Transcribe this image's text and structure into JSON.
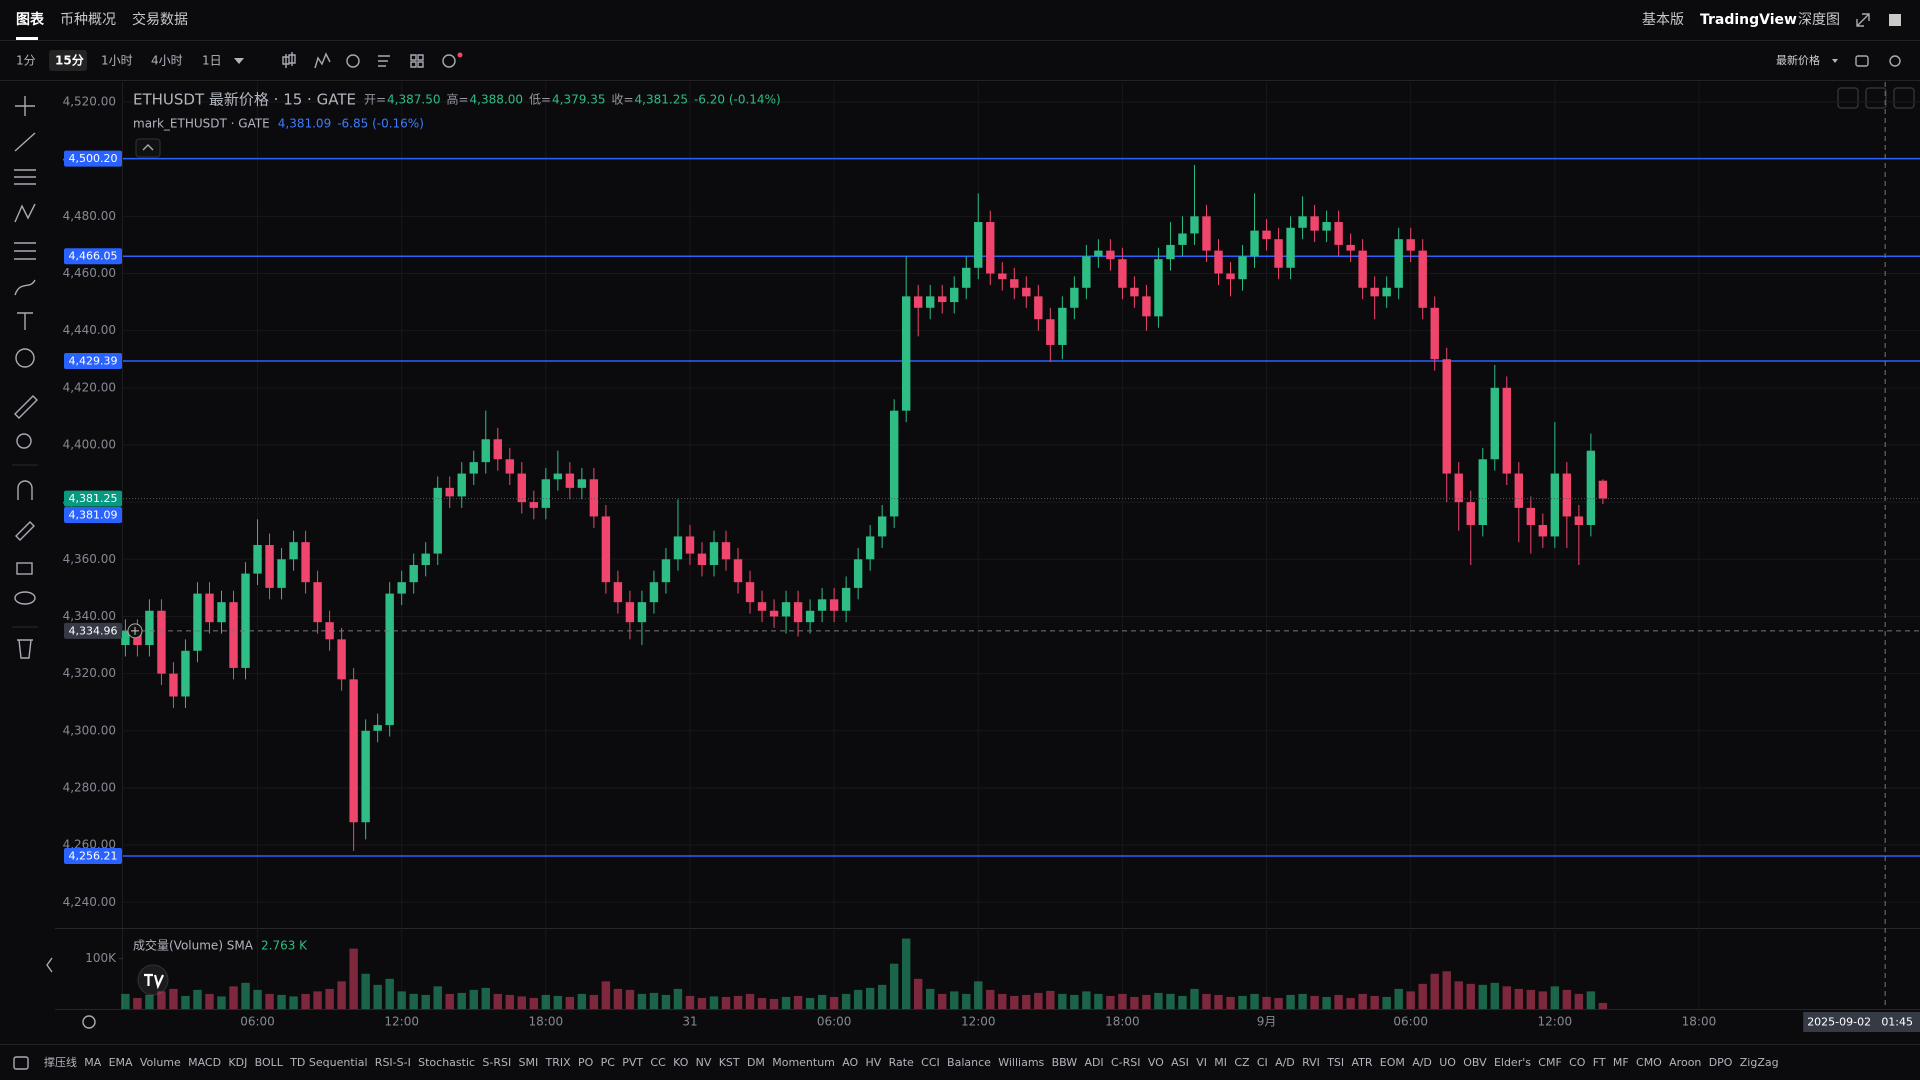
{
  "top_tabs": [
    "图表",
    "币种概况",
    "交易数据"
  ],
  "top_right": [
    "基本版",
    "TradingView",
    "深度图"
  ],
  "intervals": [
    "1分",
    "15分",
    "1小时",
    "4小时",
    "1日"
  ],
  "price_mode": "最新价格",
  "legend": {
    "title": "ETHUSDT 最新价格 · 15 · GATE",
    "fields": [
      {
        "label": "开=",
        "value": "4,387.50"
      },
      {
        "label": "高=",
        "value": "4,388.00"
      },
      {
        "label": "低=",
        "value": "4,379.35"
      },
      {
        "label": "收=",
        "value": "4,381.25"
      }
    ],
    "change": "-6.20 (-0.14%)",
    "mark_title": "mark_ETHUSDT · GATE",
    "mark_value": "4,381.09",
    "mark_change": "-6.85 (-0.16%)"
  },
  "indicators": [
    "撑压线",
    "MA",
    "EMA",
    "Volume",
    "MACD",
    "KDJ",
    "BOLL",
    "TD Sequential",
    "RSI-S-I",
    "Stochastic",
    "S-RSI",
    "SMI",
    "TRIX",
    "PO",
    "PC",
    "PVT",
    "CC",
    "KO",
    "NV",
    "KST",
    "DM",
    "Momentum",
    "AO",
    "HV",
    "Rate",
    "CCI",
    "Balance",
    "Williams",
    "BBW",
    "ADI",
    "C-RSI",
    "VO",
    "ASI",
    "VI",
    "MI",
    "CZ",
    "CI",
    "A/D",
    "RVI",
    "TSI",
    "ATR",
    "EOM",
    "A/D",
    "UO",
    "OBV",
    "Elder's",
    "CMF",
    "CO",
    "FT",
    "MF",
    "CMO",
    "Aroon",
    "DPO",
    "ZigZag"
  ],
  "chart_data": {
    "type": "candlestick",
    "x": [
      1,
      2,
      3,
      4,
      5,
      6,
      7,
      8,
      9,
      10,
      11,
      12,
      13,
      14,
      15,
      16,
      17,
      18,
      19,
      20,
      21,
      22,
      23,
      24,
      25,
      26,
      27,
      28,
      29,
      30,
      31,
      32,
      33,
      34,
      35,
      36,
      37,
      38,
      39,
      40,
      41,
      42,
      43,
      44,
      45,
      46,
      47,
      48,
      49,
      50,
      51,
      52,
      53,
      54,
      55,
      56,
      57,
      58,
      59,
      60,
      61,
      62,
      63,
      64,
      65,
      66,
      67,
      68,
      69,
      70,
      71,
      72,
      73,
      74,
      75,
      76,
      77,
      78,
      79,
      80,
      81,
      82,
      83,
      84,
      85,
      86,
      87,
      88,
      89,
      90,
      91,
      92,
      93,
      94,
      95,
      96,
      97,
      98,
      99,
      100,
      101,
      102,
      103,
      104,
      105,
      106,
      107,
      108,
      109,
      110,
      111,
      112,
      113,
      114,
      115,
      116,
      117,
      118,
      119,
      120,
      121,
      122,
      123,
      124
    ],
    "open": [
      4330,
      4335,
      4330,
      4342,
      4320,
      4312,
      4328,
      4348,
      4338,
      4345,
      4322,
      4355,
      4365,
      4350,
      4360,
      4366,
      4352,
      4338,
      4332,
      4318,
      4268,
      4300,
      4302,
      4348,
      4352,
      4358,
      4362,
      4385,
      4382,
      4390,
      4394,
      4402,
      4395,
      4390,
      4380,
      4378,
      4388,
      4390,
      4385,
      4388,
      4375,
      4352,
      4345,
      4338,
      4345,
      4352,
      4360,
      4368,
      4362,
      4358,
      4366,
      4360,
      4352,
      4345,
      4342,
      4340,
      4345,
      4338,
      4342,
      4346,
      4342,
      4350,
      4360,
      4368,
      4375,
      4412,
      4452,
      4448,
      4452,
      4450,
      4455,
      4462,
      4478,
      4460,
      4458,
      4455,
      4452,
      4444,
      4435,
      4448,
      4455,
      4466,
      4468,
      4465,
      4455,
      4452,
      4445,
      4465,
      4470,
      4474,
      4480,
      4468,
      4460,
      4458,
      4466,
      4475,
      4472,
      4462,
      4476,
      4480,
      4475,
      4478,
      4470,
      4468,
      4455,
      4452,
      4455,
      4472,
      4468,
      4448,
      4430,
      4390,
      4380,
      4372,
      4395,
      4420,
      4390,
      4378,
      4372,
      4368,
      4390,
      4375,
      4372,
      4387.5
    ],
    "high": [
      4339,
      4339,
      4346,
      4346,
      4324,
      4332,
      4352,
      4352,
      4349,
      4349,
      4359,
      4374,
      4369,
      4364,
      4370,
      4370,
      4356,
      4342,
      4336,
      4322,
      4304,
      4306,
      4352,
      4356,
      4362,
      4366,
      4389,
      4389,
      4394,
      4398,
      4412,
      4406,
      4399,
      4394,
      4384,
      4392,
      4398,
      4394,
      4392,
      4392,
      4379,
      4356,
      4349,
      4349,
      4356,
      4364,
      4381,
      4372,
      4366,
      4370,
      4370,
      4364,
      4356,
      4349,
      4346,
      4349,
      4349,
      4346,
      4350,
      4350,
      4354,
      4364,
      4372,
      4379,
      4416,
      4466,
      4456,
      4456,
      4456,
      4459,
      4466,
      4488,
      4482,
      4464,
      4462,
      4459,
      4456,
      4448,
      4452,
      4459,
      4470,
      4472,
      4472,
      4469,
      4459,
      4456,
      4469,
      4478,
      4480,
      4498,
      4484,
      4472,
      4464,
      4470,
      4488,
      4479,
      4476,
      4480,
      4487,
      4484,
      4482,
      4482,
      4474,
      4472,
      4459,
      4459,
      4476,
      4476,
      4472,
      4452,
      4434,
      4394,
      4384,
      4399,
      4428,
      4424,
      4394,
      4382,
      4376,
      4408,
      4394,
      4379,
      4404,
      4388
    ],
    "low": [
      4326,
      4326,
      4326,
      4316,
      4308,
      4308,
      4324,
      4334,
      4334,
      4318,
      4318,
      4351,
      4346,
      4346,
      4356,
      4348,
      4334,
      4328,
      4314,
      4258,
      4262,
      4296,
      4298,
      4344,
      4348,
      4354,
      4358,
      4378,
      4378,
      4386,
      4390,
      4391,
      4386,
      4376,
      4374,
      4374,
      4384,
      4381,
      4381,
      4371,
      4348,
      4341,
      4332,
      4330,
      4341,
      4348,
      4356,
      4358,
      4354,
      4354,
      4356,
      4348,
      4341,
      4338,
      4336,
      4334,
      4333,
      4334,
      4338,
      4338,
      4338,
      4346,
      4356,
      4364,
      4371,
      4408,
      4438,
      4444,
      4446,
      4446,
      4451,
      4458,
      4456,
      4454,
      4451,
      4448,
      4440,
      4429,
      4430,
      4444,
      4451,
      4462,
      4461,
      4451,
      4448,
      4440,
      4441,
      4461,
      4466,
      4470,
      4464,
      4456,
      4452,
      4454,
      4462,
      4468,
      4458,
      4458,
      4472,
      4471,
      4471,
      4466,
      4464,
      4451,
      4444,
      4448,
      4451,
      4464,
      4444,
      4426,
      4380,
      4370,
      4358,
      4368,
      4391,
      4386,
      4366,
      4362,
      4364,
      4364,
      4364,
      4358,
      4368,
      4379.35
    ],
    "close": [
      4335,
      4330,
      4342,
      4320,
      4312,
      4328,
      4348,
      4338,
      4345,
      4322,
      4355,
      4365,
      4350,
      4360,
      4366,
      4352,
      4338,
      4332,
      4318,
      4268,
      4300,
      4302,
      4348,
      4352,
      4358,
      4362,
      4385,
      4382,
      4390,
      4394,
      4402,
      4395,
      4390,
      4380,
      4378,
      4388,
      4390,
      4385,
      4388,
      4375,
      4352,
      4345,
      4338,
      4345,
      4352,
      4360,
      4368,
      4362,
      4358,
      4366,
      4360,
      4352,
      4345,
      4342,
      4340,
      4345,
      4338,
      4342,
      4346,
      4342,
      4350,
      4360,
      4368,
      4375,
      4412,
      4452,
      4448,
      4452,
      4450,
      4455,
      4462,
      4478,
      4460,
      4458,
      4455,
      4452,
      4444,
      4435,
      4448,
      4455,
      4466,
      4468,
      4465,
      4455,
      4452,
      4445,
      4465,
      4470,
      4474,
      4480,
      4468,
      4460,
      4458,
      4466,
      4475,
      4472,
      4462,
      4476,
      4480,
      4475,
      4478,
      4470,
      4468,
      4455,
      4452,
      4455,
      4472,
      4468,
      4448,
      4430,
      4390,
      4380,
      4372,
      4395,
      4420,
      4390,
      4378,
      4372,
      4368,
      4390,
      4375,
      4372,
      4398,
      4381.25
    ],
    "up_color": "#2ebd85",
    "down_color": "#f0466e",
    "xlim": [
      0.8,
      150.4
    ],
    "xticks": [
      {
        "value": 12,
        "label": "06:00"
      },
      {
        "value": 24,
        "label": "12:00"
      },
      {
        "value": 36,
        "label": "18:00"
      },
      {
        "value": 48,
        "label": "31"
      },
      {
        "value": 60,
        "label": "06:00"
      },
      {
        "value": 72,
        "label": "12:00"
      },
      {
        "value": 84,
        "label": "18:00"
      },
      {
        "value": 96,
        "label": "9月"
      },
      {
        "value": 108,
        "label": "06:00"
      },
      {
        "value": 120,
        "label": "12:00"
      },
      {
        "value": 132,
        "label": "18:00"
      }
    ],
    "ylim": [
      4231,
      4527
    ],
    "yticks": [
      {
        "value": 4240,
        "label": "4,240.00"
      },
      {
        "value": 4260,
        "label": "4,260.00"
      },
      {
        "value": 4280,
        "label": "4,280.00"
      },
      {
        "value": 4300,
        "label": "4,300.00"
      },
      {
        "value": 4320,
        "label": "4,320.00"
      },
      {
        "value": 4340,
        "label": "4,340.00"
      },
      {
        "value": 4360,
        "label": "4,360.00"
      },
      {
        "value": 4380,
        "label": "4,380.00"
      },
      {
        "value": 4400,
        "label": "4,400.00"
      },
      {
        "value": 4420,
        "label": "4,420.00"
      },
      {
        "value": 4440,
        "label": "4,440.00"
      },
      {
        "value": 4460,
        "label": "4,460.00"
      },
      {
        "value": 4480,
        "label": "4,480.00"
      },
      {
        "value": 4500,
        "label": "4,500.00"
      },
      {
        "value": 4520,
        "label": "4,520.00"
      }
    ],
    "grid": true,
    "levels": [
      {
        "value": 4500.2,
        "label": "4,500.20"
      },
      {
        "value": 4466.05,
        "label": "4,466.05"
      },
      {
        "value": 4429.39,
        "label": "4,429.39"
      },
      {
        "value": 4256.21,
        "label": "4,256.21"
      }
    ],
    "level_color": "#2962ff",
    "last_price": {
      "value": 4381.25,
      "label": "4,381.25",
      "color": "#089981"
    },
    "mark_price": {
      "value": 4381.09,
      "label": "4,381.09",
      "color": "#2962ff"
    },
    "crosshair": {
      "x": 147.5,
      "y": 4334.96,
      "y_label": "4,334.96",
      "x_label": [
        "2025-09-02",
        "01:45"
      ]
    },
    "volume": {
      "name": "成交量(Volume) SMA",
      "sma_label": "2.763 K",
      "values": [
        30000,
        22000,
        28000,
        35000,
        40000,
        26000,
        38000,
        30000,
        25000,
        45000,
        52000,
        38000,
        30000,
        28000,
        25000,
        30000,
        35000,
        40000,
        55000,
        120000,
        70000,
        48000,
        60000,
        35000,
        30000,
        28000,
        45000,
        30000,
        32000,
        38000,
        42000,
        30000,
        28000,
        25000,
        22000,
        28000,
        26000,
        24000,
        30000,
        28000,
        55000,
        40000,
        38000,
        30000,
        32000,
        28000,
        40000,
        26000,
        22000,
        25000,
        24000,
        26000,
        30000,
        22000,
        20000,
        24000,
        26000,
        22000,
        28000,
        24000,
        30000,
        38000,
        42000,
        48000,
        90000,
        140000,
        60000,
        40000,
        30000,
        35000,
        30000,
        55000,
        38000,
        30000,
        26000,
        28000,
        32000,
        36000,
        30000,
        28000,
        35000,
        30000,
        26000,
        30000,
        24000,
        28000,
        32000,
        30000,
        26000,
        40000,
        30000,
        28000,
        24000,
        26000,
        30000,
        24000,
        22000,
        28000,
        30000,
        26000,
        24000,
        28000,
        22000,
        30000,
        26000,
        24000,
        40000,
        35000,
        50000,
        70000,
        75000,
        55000,
        50000,
        48000,
        52000,
        45000,
        40000,
        38000,
        35000,
        45000,
        38000,
        30000,
        35000,
        12000
      ],
      "ylim": [
        0,
        161000
      ],
      "yticks": [
        {
          "value": 100000,
          "label": "100K"
        }
      ]
    }
  }
}
